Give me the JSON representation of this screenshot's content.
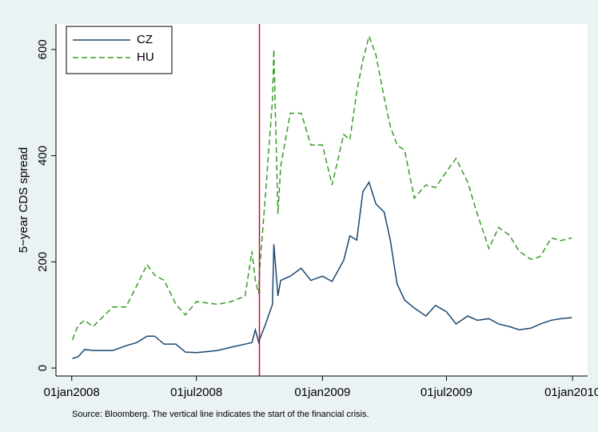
{
  "chart_data": {
    "type": "line",
    "y_label": "5−year CDS spread",
    "note": "Source: Bloomberg. The vertical line indicates the start of the financial crisis.",
    "x": [
      "2008-01-02",
      "2008-01-10",
      "2008-01-20",
      "2008-02-01",
      "2008-03-01",
      "2008-03-20",
      "2008-04-05",
      "2008-04-20",
      "2008-05-01",
      "2008-05-15",
      "2008-06-01",
      "2008-06-15",
      "2008-07-01",
      "2008-08-01",
      "2008-08-20",
      "2008-09-10",
      "2008-09-20",
      "2008-09-25",
      "2008-09-30",
      "2008-10-01",
      "2008-10-10",
      "2008-10-20",
      "2008-10-22",
      "2008-10-28",
      "2008-11-01",
      "2008-11-15",
      "2008-12-01",
      "2008-12-15",
      "2009-01-01",
      "2009-01-15",
      "2009-02-01",
      "2009-02-10",
      "2009-02-20",
      "2009-03-01",
      "2009-03-10",
      "2009-03-20",
      "2009-04-01",
      "2009-04-10",
      "2009-04-20",
      "2009-05-01",
      "2009-05-15",
      "2009-06-01",
      "2009-06-15",
      "2009-07-01",
      "2009-07-15",
      "2009-08-01",
      "2009-08-15",
      "2009-09-01",
      "2009-09-15",
      "2009-10-01",
      "2009-10-15",
      "2009-11-01",
      "2009-11-15",
      "2009-12-01",
      "2009-12-15",
      "2009-12-31"
    ],
    "series": [
      {
        "name": "CZ",
        "color": "#1a476f",
        "dash": false,
        "values": [
          18,
          21,
          35,
          33,
          33,
          42,
          48,
          60,
          60,
          45,
          45,
          30,
          29,
          33,
          39,
          45,
          48,
          72,
          48,
          53,
          83,
          120,
          233,
          136,
          165,
          173,
          188,
          165,
          173,
          163,
          203,
          249,
          241,
          332,
          350,
          309,
          294,
          241,
          158,
          128,
          113,
          98,
          118,
          106,
          83,
          98,
          90,
          93,
          83,
          78,
          72,
          75,
          83,
          90,
          93,
          95
        ]
      },
      {
        "name": "HU",
        "color": "#3a9a2a",
        "dash": true,
        "values": [
          53,
          80,
          90,
          78,
          115,
          115,
          155,
          195,
          175,
          165,
          120,
          100,
          125,
          120,
          125,
          135,
          220,
          165,
          140,
          180,
          330,
          505,
          600,
          290,
          380,
          480,
          480,
          420,
          420,
          345,
          440,
          430,
          520,
          580,
          625,
          590,
          510,
          455,
          420,
          410,
          320,
          345,
          340,
          370,
          395,
          350,
          290,
          225,
          265,
          250,
          220,
          205,
          210,
          245,
          240,
          245
        ]
      }
    ],
    "vline": {
      "x": "2008-10-01",
      "color": "#c0102f"
    },
    "xlim": [
      "2007-12-09",
      "2010-01-23"
    ],
    "xticks": [
      {
        "value": "2008-01-01",
        "label": "01jan2008"
      },
      {
        "value": "2008-07-01",
        "label": "01jul2008"
      },
      {
        "value": "2009-01-01",
        "label": "01jan2009"
      },
      {
        "value": "2009-07-01",
        "label": "01jul2009"
      },
      {
        "value": "2010-01-01",
        "label": "01jan2010"
      }
    ],
    "ylim": [
      -15,
      648
    ],
    "yticks": [
      0,
      200,
      400,
      600
    ],
    "legend": "top-left"
  }
}
